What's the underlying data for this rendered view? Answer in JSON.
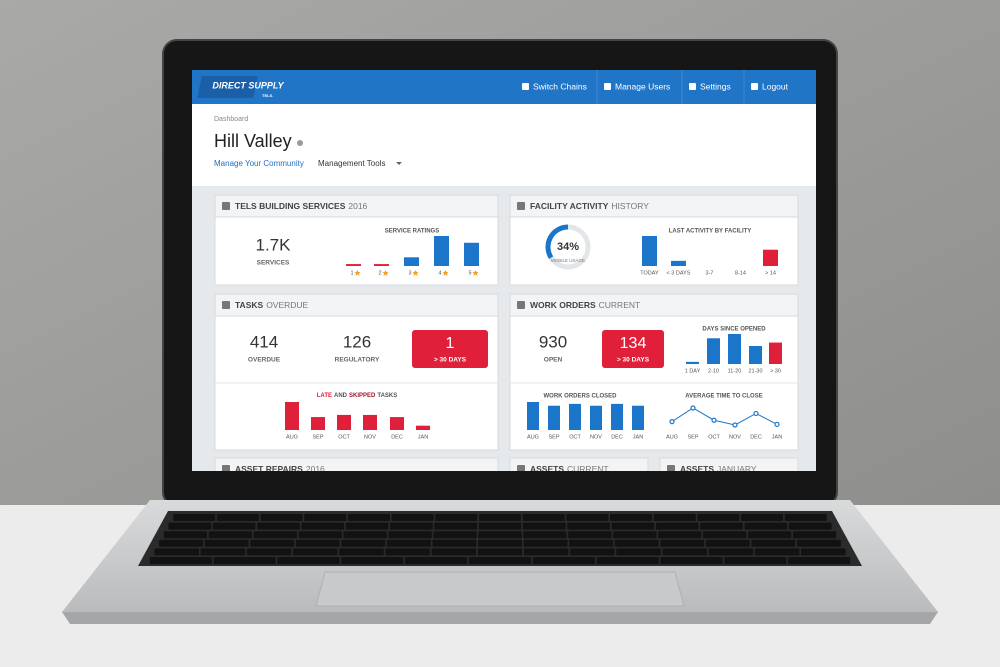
{
  "nav": {
    "brand": "DIRECT SUPPLY",
    "brand_sub": "TELS.",
    "links": [
      "Switch Chains",
      "Manage Users",
      "Settings",
      "Logout"
    ]
  },
  "header": {
    "breadcrumb": "Dashboard",
    "title": "Hill Valley",
    "links": [
      "Manage Your Community",
      "Management Tools"
    ]
  },
  "panels": [
    {
      "title": "TELS BUILDING SERVICES",
      "subtitle": "2016",
      "stats": [
        {
          "value": "1.7K",
          "label": "SERVICES"
        }
      ],
      "charts": [
        {
          "type": "bar",
          "title": "SERVICE RATINGS",
          "categories": [
            "1",
            "2",
            "3",
            "4",
            "5"
          ],
          "values": [
            4,
            4,
            18,
            62,
            48
          ],
          "colors": [
            "#e0203a",
            "#e0203a",
            "#1b75c9",
            "#1b75c9",
            "#1b75c9"
          ]
        }
      ]
    },
    {
      "title": "FACILITY ACTIVITY",
      "subtitle": "HISTORY",
      "donut": {
        "value": 34,
        "value_label": "34%",
        "label": "MOBILE USAGE",
        "color": "#1b75c9"
      },
      "charts": [
        {
          "type": "bar",
          "title": "LAST ACTIVITY BY FACILITY",
          "categories": [
            "TODAY",
            "< 3 DAYS",
            "3-7",
            "8-14",
            "> 14"
          ],
          "values": [
            70,
            12,
            0,
            0,
            38
          ],
          "colors": [
            "#1b75c9",
            "#1b75c9",
            "#1b75c9",
            "#1b75c9",
            "#e0203a"
          ]
        }
      ]
    },
    {
      "title": "TASKS",
      "subtitle": "OVERDUE",
      "stats": [
        {
          "value": "414",
          "label": "OVERDUE"
        },
        {
          "value": "126",
          "label": "REGULATORY"
        }
      ],
      "alert": {
        "value": "1",
        "label": "> 30 DAYS"
      },
      "charts": [
        {
          "type": "bar",
          "title_parts": [
            "LATE",
            "AND",
            "SKIPPED",
            "TASKS"
          ],
          "categories": [
            "AUG",
            "SEP",
            "OCT",
            "NOV",
            "DEC",
            "JAN"
          ],
          "values": [
            65,
            30,
            35,
            35,
            30,
            10
          ],
          "colors": [
            "#e0203a",
            "#e0203a",
            "#e0203a",
            "#e0203a",
            "#e0203a",
            "#e0203a"
          ]
        }
      ]
    },
    {
      "title": "WORK ORDERS",
      "subtitle": "CURRENT",
      "stats": [
        {
          "value": "930",
          "label": "OPEN"
        }
      ],
      "alert": {
        "value": "134",
        "label": "> 30 DAYS"
      },
      "charts": [
        {
          "type": "bar",
          "title": "DAYS SINCE OPENED",
          "categories": [
            "1 DAY",
            "2-10",
            "11-20",
            "21-30",
            "> 30"
          ],
          "values": [
            5,
            60,
            70,
            42,
            50
          ],
          "colors": [
            "#1b75c9",
            "#1b75c9",
            "#1b75c9",
            "#1b75c9",
            "#e0203a"
          ]
        },
        {
          "type": "bar",
          "title": "WORK ORDERS CLOSED",
          "categories": [
            "AUG",
            "SEP",
            "OCT",
            "NOV",
            "DEC",
            "JAN"
          ],
          "values": [
            75,
            65,
            70,
            65,
            70,
            65
          ],
          "colors": [
            "#1b75c9",
            "#1b75c9",
            "#1b75c9",
            "#1b75c9",
            "#1b75c9",
            "#1b75c9"
          ]
        },
        {
          "type": "line",
          "title": "AVERAGE TIME TO CLOSE",
          "categories": [
            "AUG",
            "SEP",
            "OCT",
            "NOV",
            "DEC",
            "JAN"
          ],
          "values": [
            40,
            60,
            42,
            35,
            52,
            36
          ],
          "color": "#1b75c9"
        }
      ]
    },
    {
      "title": "ASSET REPAIRS",
      "subtitle": "2016"
    },
    {
      "title": "ASSETS",
      "subtitle": "CURRENT"
    },
    {
      "title": "ASSETS",
      "subtitle": "JANUARY"
    }
  ]
}
